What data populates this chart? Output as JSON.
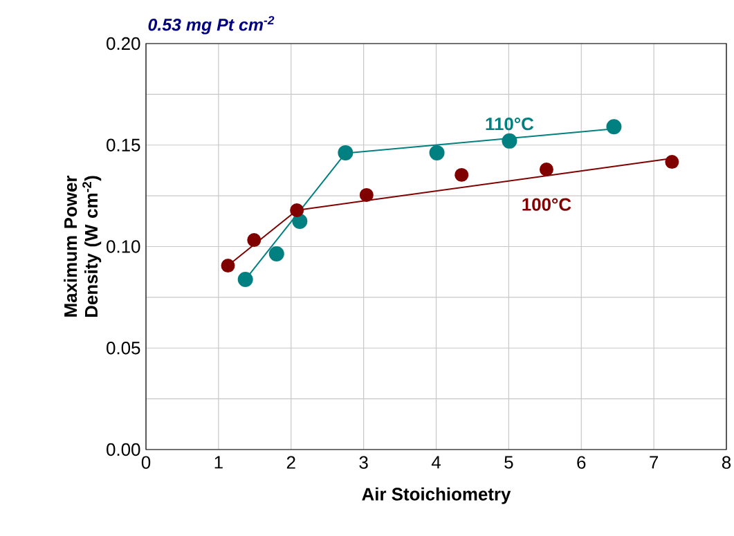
{
  "chart_data": {
    "type": "scatter",
    "title": "0.53 mg Pt cm$^{-2}$",
    "xlabel": "Air Stoichiometry",
    "ylabel": "Maximum Power Density (W cm$^{-2}$)",
    "xlim": [
      0,
      8
    ],
    "xticks": [
      0,
      1,
      2,
      3,
      4,
      5,
      6,
      7,
      8
    ],
    "ylim": [
      0,
      0.2
    ],
    "yticks": [
      {
        "value": 0,
        "label": "0.00"
      },
      {
        "value": 0.025,
        "label": null
      },
      {
        "value": 0.05,
        "label": "0.05"
      },
      {
        "value": 0.075,
        "label": null
      },
      {
        "value": 0.1,
        "label": "0.10"
      },
      {
        "value": 0.125,
        "label": null
      },
      {
        "value": 0.15,
        "label": "0.15"
      },
      {
        "value": 0.175,
        "label": null
      },
      {
        "value": 0.2,
        "label": "0.20"
      }
    ],
    "grid": true,
    "series": [
      {
        "name": "110°C",
        "marker": "circle",
        "color": "#008080",
        "x": [
          1.37,
          1.8,
          2.12,
          2.75,
          4.01,
          5.01,
          6.45
        ],
        "values": [
          0.0838,
          0.0964,
          0.1124,
          0.1462,
          0.1462,
          0.152,
          0.159
        ]
      },
      {
        "name": "100°C",
        "marker": "circle",
        "color": "#800000",
        "x": [
          1.13,
          1.49,
          2.08,
          3.04,
          4.35,
          5.52,
          7.25
        ],
        "values": [
          0.0906,
          0.1032,
          0.1179,
          0.1254,
          0.1353,
          0.138,
          0.1417
        ]
      },
      {
        "type": "line",
        "marker": "none",
        "color": "#008080",
        "x": [
          1.37,
          2.75,
          6.45
        ],
        "values": [
          0.0838,
          0.146,
          0.158
        ]
      },
      {
        "type": "line",
        "marker": "none",
        "color": "#800000",
        "x": [
          1.13,
          2.08,
          7.25
        ],
        "values": [
          0.0906,
          0.1179,
          0.1434
        ]
      }
    ]
  }
}
